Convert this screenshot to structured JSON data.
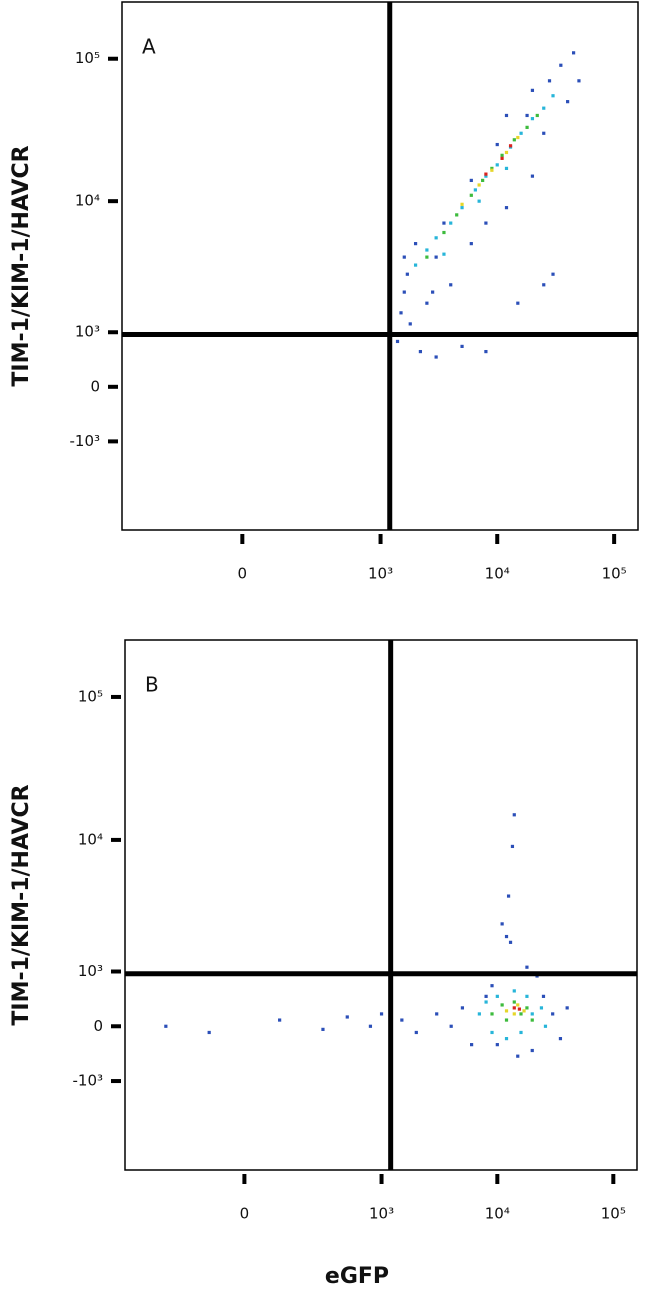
{
  "chart_data": [
    {
      "type": "scatter",
      "panel_label": "A",
      "y_label": "TIM-1/KIM-1/HAVCR",
      "xscale": "biexponential",
      "yscale": "biexponential",
      "xlim": [
        -700,
        160000
      ],
      "ylim": [
        -5000,
        250000
      ],
      "xticks": [
        0,
        {
          "value": 1000,
          "label": "10³"
        },
        {
          "value": 10000,
          "label": "10⁴"
        },
        {
          "value": 100000,
          "label": "10⁵"
        }
      ],
      "yticks": [
        {
          "value": -1000,
          "label": "-10³"
        },
        0,
        {
          "value": 1000,
          "label": "10³"
        },
        {
          "value": 10000,
          "label": "10⁴"
        },
        {
          "value": 100000,
          "label": "10⁵"
        }
      ],
      "quadrant_x": 1200,
      "quadrant_y": 950,
      "series": [
        {
          "color": "#2b4fb8",
          "x": [
            1500,
            1800,
            1600,
            2500,
            3000,
            4000,
            6000,
            8000,
            12000,
            20000,
            25000,
            30000,
            15000,
            5000,
            3000,
            8000,
            1400,
            2200,
            40000,
            50000,
            45000,
            35000,
            25000,
            2000,
            1600,
            3500,
            6000,
            10000,
            18000,
            28000,
            20000,
            12000,
            1700,
            2800
          ],
          "values": [
            1500,
            1200,
            2200,
            1800,
            4000,
            2500,
            5000,
            7000,
            9000,
            15000,
            2500,
            3000,
            1800,
            700,
            500,
            600,
            800,
            600,
            50000,
            70000,
            110000,
            90000,
            30000,
            5000,
            4000,
            7000,
            14000,
            25000,
            40000,
            70000,
            60000,
            40000,
            3000,
            2200
          ]
        },
        {
          "color": "#27b5d9",
          "x": [
            2000,
            2500,
            3000,
            4000,
            5000,
            6500,
            8000,
            10000,
            13000,
            16000,
            20000,
            25000,
            30000,
            3500,
            7000,
            12000
          ],
          "values": [
            3500,
            4500,
            5500,
            7000,
            9000,
            12000,
            15000,
            18000,
            24000,
            30000,
            38000,
            45000,
            55000,
            4200,
            10000,
            17000
          ]
        },
        {
          "color": "#3dbb3d",
          "x": [
            2500,
            3500,
            4500,
            6000,
            7500,
            9000,
            11000,
            14000,
            18000,
            22000
          ],
          "values": [
            4000,
            6000,
            8000,
            11000,
            14000,
            17000,
            21000,
            27000,
            33000,
            40000
          ]
        },
        {
          "color": "#e6d62a",
          "x": [
            5000,
            7000,
            9000,
            12000,
            15000
          ],
          "values": [
            9500,
            13000,
            16500,
            22000,
            28000
          ]
        },
        {
          "color": "#d9241f",
          "x": [
            8000,
            11000,
            13000
          ],
          "values": [
            15500,
            20000,
            24500
          ]
        }
      ]
    },
    {
      "type": "scatter",
      "panel_label": "B",
      "y_label": "TIM-1/KIM-1/HAVCR",
      "x_label": "eGFP",
      "xscale": "biexponential",
      "yscale": "biexponential",
      "xlim": [
        -700,
        160000
      ],
      "ylim": [
        -5000,
        250000
      ],
      "xticks": [
        0,
        {
          "value": 1000,
          "label": "10³"
        },
        {
          "value": 10000,
          "label": "10⁴"
        },
        {
          "value": 100000,
          "label": "10⁵"
        }
      ],
      "yticks": [
        {
          "value": -1000,
          "label": "-10³"
        },
        0,
        {
          "value": 1000,
          "label": "10³"
        },
        {
          "value": 10000,
          "label": "10⁴"
        },
        {
          "value": 100000,
          "label": "10⁵"
        }
      ],
      "quadrant_x": 1200,
      "quadrant_y": 950,
      "series": [
        {
          "color": "#2b4fb8",
          "x": [
            -300,
            -100,
            100,
            300,
            500,
            800,
            1000,
            1500,
            2000,
            3000,
            4000,
            5000,
            6000,
            8000,
            25000,
            30000,
            40000,
            35000,
            20000,
            10000,
            12000,
            11000,
            13000,
            12500,
            14000,
            13500,
            18000,
            22000,
            9000,
            15000
          ],
          "values": [
            0,
            -100,
            100,
            -50,
            150,
            0,
            200,
            100,
            -100,
            200,
            0,
            300,
            -300,
            500,
            500,
            200,
            300,
            -200,
            -400,
            -300,
            2000,
            2500,
            1800,
            4000,
            15000,
            9000,
            1100,
            900,
            700,
            -500
          ]
        },
        {
          "color": "#27b5d9",
          "x": [
            7000,
            8000,
            9000,
            10000,
            12000,
            14000,
            16000,
            18000,
            20000,
            24000,
            26000
          ],
          "values": [
            200,
            400,
            -100,
            500,
            -200,
            600,
            -100,
            500,
            200,
            300,
            0
          ]
        },
        {
          "color": "#3dbb3d",
          "x": [
            9000,
            11000,
            12000,
            14000,
            16000,
            18000,
            20000
          ],
          "values": [
            200,
            350,
            100,
            400,
            200,
            300,
            100
          ]
        },
        {
          "color": "#e6d62a",
          "x": [
            12000,
            14000,
            15000,
            17000
          ],
          "values": [
            250,
            200,
            350,
            250
          ]
        },
        {
          "color": "#d9241f",
          "x": [
            14000,
            15500
          ],
          "values": [
            300,
            280
          ]
        }
      ]
    }
  ]
}
